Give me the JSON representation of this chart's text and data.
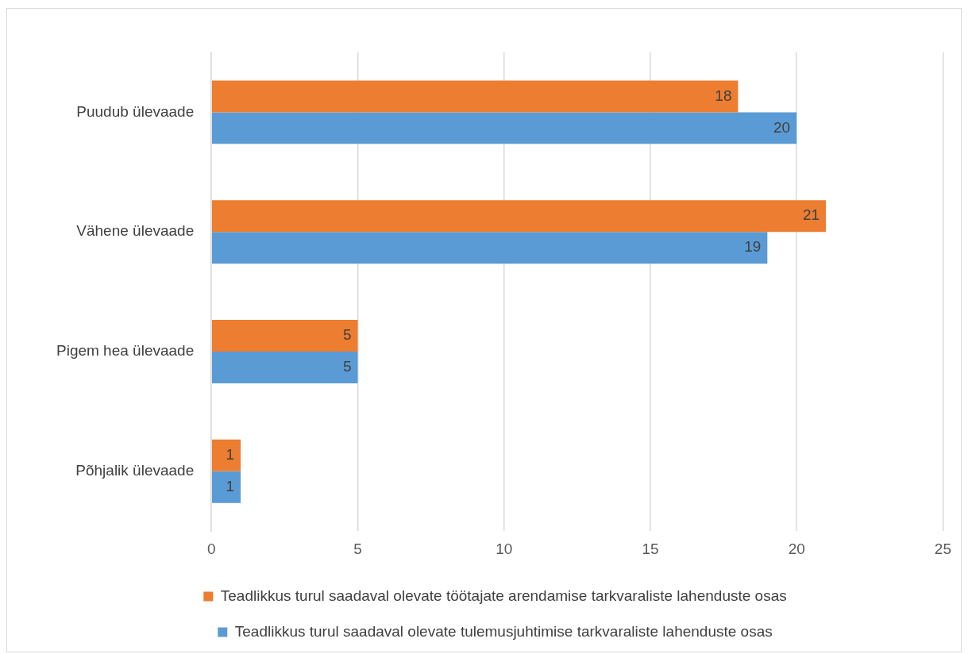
{
  "chart_data": {
    "type": "bar",
    "orientation": "horizontal",
    "categories": [
      "Puudub ülevaade",
      "Vähene ülevaade",
      "Pigem hea ülevaade",
      "Põhjalik ülevaade"
    ],
    "series": [
      {
        "name": "Teadlikkus turul saadaval olevate töötajate arendamise tarkvaraliste lahenduste osas",
        "color": "#ed7d31",
        "values": [
          18,
          21,
          5,
          1
        ]
      },
      {
        "name": "Teadlikkus turul saadaval olevate tulemusjuhtimise tarkvaraliste lahenduste osas",
        "color": "#5b9bd5",
        "values": [
          20,
          19,
          5,
          1
        ]
      }
    ],
    "xlim": [
      0,
      25
    ],
    "xticks": [
      0,
      5,
      10,
      15,
      20,
      25
    ],
    "grid": "x",
    "legend": "bottom",
    "data_labels": true
  }
}
